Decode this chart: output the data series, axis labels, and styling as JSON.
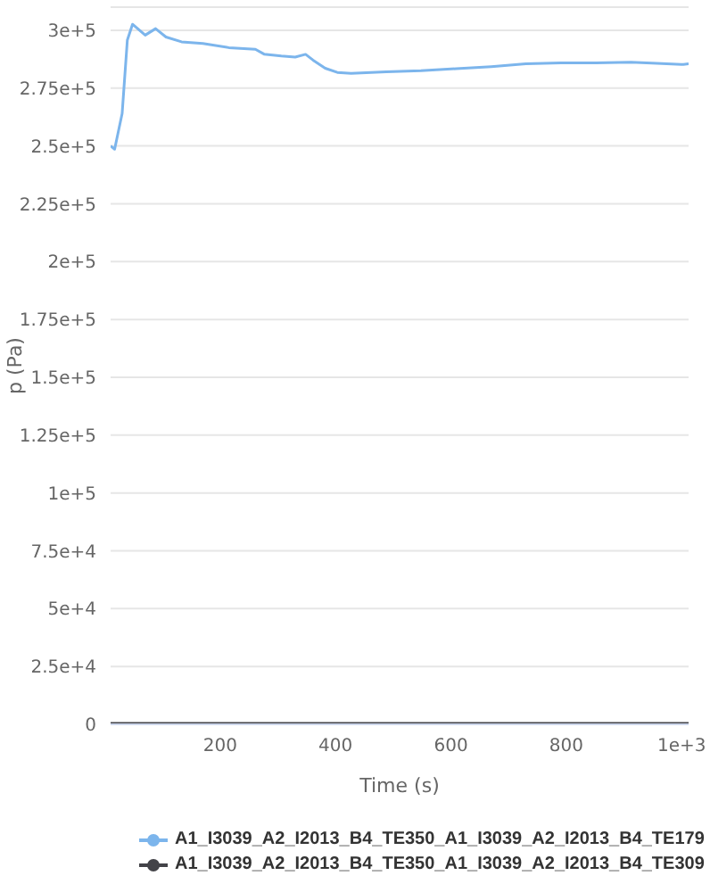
{
  "chart_data": {
    "type": "line",
    "xlabel": "Time (s)",
    "ylabel": "p (Pa)",
    "xlim": [
      10,
      1012
    ],
    "xticks": [
      200,
      400,
      600,
      800,
      {
        "value": 1000,
        "label": "1e+3"
      }
    ],
    "ylim": [
      0,
      310000
    ],
    "yticks": [
      0,
      {
        "value": 25000,
        "label": "2.5e+4"
      },
      {
        "value": 50000,
        "label": "5e+4"
      },
      {
        "value": 75000,
        "label": "7.5e+4"
      },
      {
        "value": 100000,
        "label": "1e+5"
      },
      {
        "value": 125000,
        "label": "1.25e+5"
      },
      {
        "value": 150000,
        "label": "1.5e+5"
      },
      {
        "value": 175000,
        "label": "1.75e+5"
      },
      {
        "value": 200000,
        "label": "2e+5"
      },
      {
        "value": 225000,
        "label": "2.25e+5"
      },
      {
        "value": 250000,
        "label": "2.5e+5"
      },
      {
        "value": 275000,
        "label": "2.75e+5"
      },
      {
        "value": 300000,
        "label": "3e+5"
      }
    ],
    "grid": "y",
    "legend": "bottom",
    "line_style": "solid",
    "series": [
      {
        "name": "A1_I3039_A2_I2013_B4_TE350_A1_I3039_A2_I2013_B4_TE179",
        "color": "#7cb5ec",
        "x": [
          10,
          17,
          30,
          39,
          48,
          70,
          88,
          106,
          133,
          170,
          215,
          261,
          276,
          306,
          330,
          348,
          361,
          382,
          403,
          427,
          488,
          548,
          609,
          670,
          730,
          791,
          851,
          912,
          957,
          1003,
          1012
        ],
        "values": [
          250000,
          248600,
          264000,
          295700,
          302600,
          297900,
          300700,
          297100,
          295000,
          294300,
          292500,
          291800,
          289700,
          288900,
          288400,
          289600,
          287100,
          283600,
          281800,
          281400,
          282000,
          282500,
          283400,
          284300,
          285500,
          285900,
          285900,
          286200,
          285700,
          285200,
          285500
        ]
      },
      {
        "name": "A1_I3039_A2_I2013_B4_TE350_A1_I3039_A2_I2013_B4_TE309",
        "color": "#434348",
        "x": [
          10,
          200,
          400,
          600,
          800,
          1012
        ],
        "values": [
          0,
          0,
          0,
          0,
          0,
          0
        ]
      }
    ]
  }
}
